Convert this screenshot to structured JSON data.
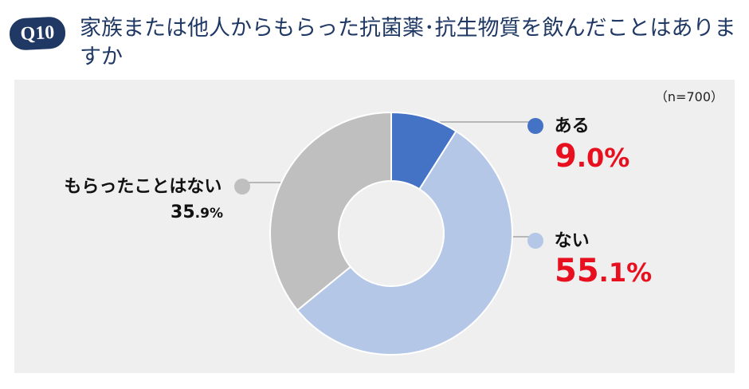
{
  "question": {
    "badge": "Q10",
    "title": "家族または他人からもらった抗菌薬･抗生物質を飲んだことはありますか"
  },
  "sample_size": "（n=700）",
  "chart_data": {
    "type": "pie",
    "variant": "donut",
    "title": "家族または他人からもらった抗菌薬･抗生物質を飲んだことはありますか",
    "n": 700,
    "slices": [
      {
        "name": "ある",
        "value": 9.0,
        "pct_int": "9",
        "pct_dec": ".0",
        "pct_sign": "%",
        "color": "#4472c4"
      },
      {
        "name": "ない",
        "value": 55.1,
        "pct_int": "55",
        "pct_dec": ".1",
        "pct_sign": "%",
        "color": "#b4c7e7"
      },
      {
        "name": "もらったことはない",
        "value": 35.9,
        "pct_int": "35",
        "pct_dec": ".9",
        "pct_sign": "%",
        "color": "#bfbfbf"
      }
    ],
    "start_angle_deg": 0,
    "direction": "clockwise",
    "legend": "callout"
  }
}
